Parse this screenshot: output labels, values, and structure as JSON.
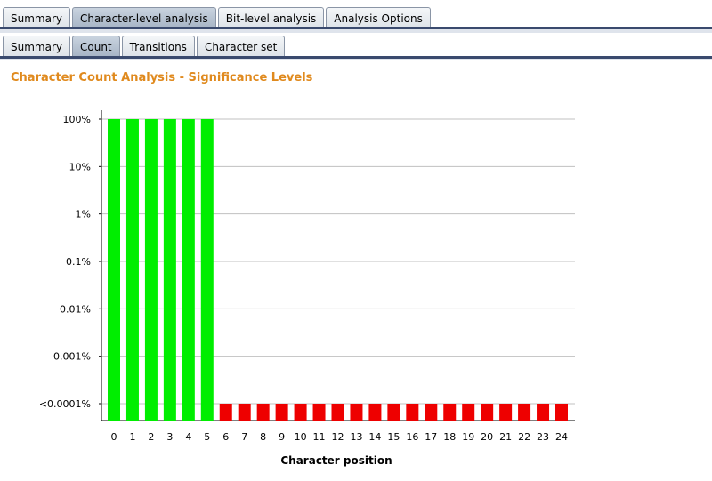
{
  "tabs_top": [
    {
      "label": "Summary",
      "active": false
    },
    {
      "label": "Character-level analysis",
      "active": true
    },
    {
      "label": "Bit-level analysis",
      "active": false
    },
    {
      "label": "Analysis Options",
      "active": false
    }
  ],
  "tabs_sub": [
    {
      "label": "Summary",
      "active": false
    },
    {
      "label": "Count",
      "active": true
    },
    {
      "label": "Transitions",
      "active": false
    },
    {
      "label": "Character set",
      "active": false
    }
  ],
  "colors": {
    "title": "#e08a1e",
    "pass": "#00ee00",
    "fail": "#ee0000",
    "grid": "#c0c0c0"
  },
  "chart_data": {
    "type": "bar",
    "title": "Character Count Analysis - Significance Levels",
    "xlabel": "Character position",
    "ylabel": "",
    "y_scale": "log",
    "y_ticks": [
      "100%",
      "10%",
      "1%",
      "0.1%",
      "0.01%",
      "0.001%",
      "<0.0001%"
    ],
    "grid": true,
    "categories": [
      "0",
      "1",
      "2",
      "3",
      "4",
      "5",
      "6",
      "7",
      "8",
      "9",
      "10",
      "11",
      "12",
      "13",
      "14",
      "15",
      "16",
      "17",
      "18",
      "19",
      "20",
      "21",
      "22",
      "23",
      "24"
    ],
    "values_percent": [
      100,
      100,
      100,
      100,
      100,
      100,
      0.0001,
      0.0001,
      0.0001,
      0.0001,
      0.0001,
      0.0001,
      0.0001,
      0.0001,
      0.0001,
      0.0001,
      0.0001,
      0.0001,
      0.0001,
      0.0001,
      0.0001,
      0.0001,
      0.0001,
      0.0001,
      0.0001
    ],
    "bar_colors": [
      "pass",
      "pass",
      "pass",
      "pass",
      "pass",
      "pass",
      "fail",
      "fail",
      "fail",
      "fail",
      "fail",
      "fail",
      "fail",
      "fail",
      "fail",
      "fail",
      "fail",
      "fail",
      "fail",
      "fail",
      "fail",
      "fail",
      "fail",
      "fail",
      "fail"
    ]
  }
}
